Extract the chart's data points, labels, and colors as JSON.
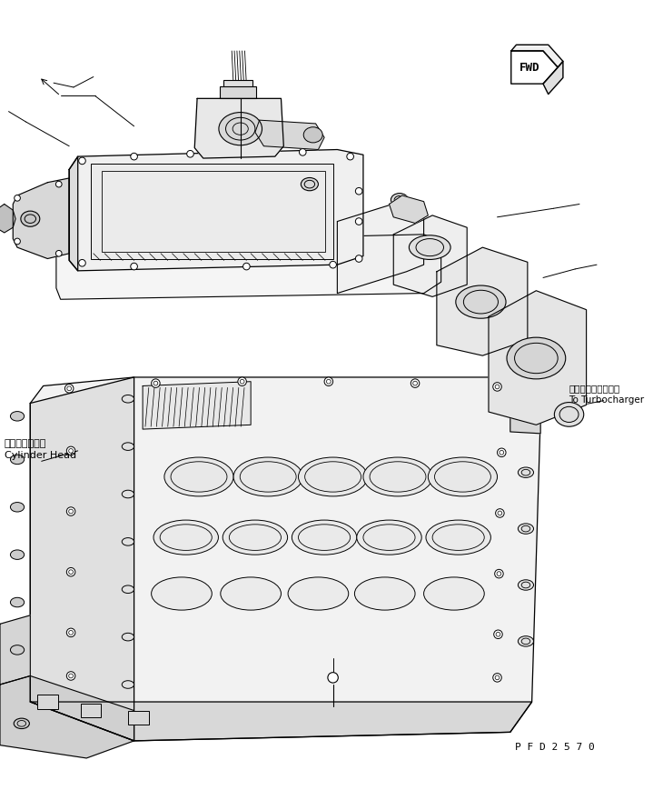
{
  "bg_color": "#ffffff",
  "line_color": "#000000",
  "fig_width": 7.19,
  "fig_height": 8.7,
  "dpi": 100,
  "label_cylinder_head_jp": "シリンダヘッド",
  "label_cylinder_head_en": "Cylinder Head",
  "label_turbocharger_jp": "ターボチャージャヘ",
  "label_turbocharger_en": "To Turbocharger",
  "label_fwd": "FWD",
  "label_part_no": "P F D 2 5 7 0",
  "lw": 0.8
}
